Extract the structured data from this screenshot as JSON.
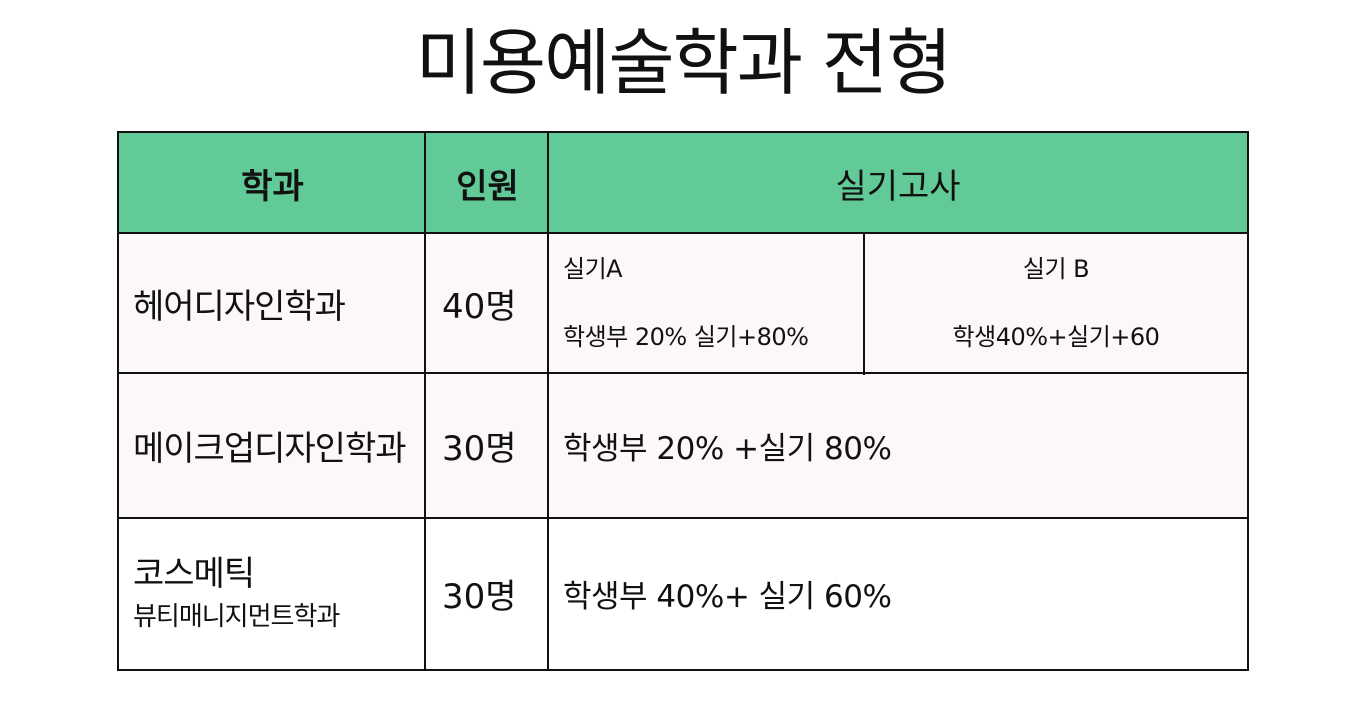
{
  "title": "미용예술학과 전형",
  "headers": {
    "dept": "학과",
    "count": "인원",
    "exam": "실기고사"
  },
  "rows": [
    {
      "dept": "헤어디자인학과",
      "count": "40명",
      "exam_a": {
        "label": "실기A",
        "ratio": "학생부 20% 실기+80%"
      },
      "exam_b": {
        "label": "실기 B",
        "ratio": "학생40%+실기+60"
      }
    },
    {
      "dept": "메이크업디자인학과",
      "count": "30명",
      "exam": "학생부 20% +실기 80%"
    },
    {
      "dept_line1": "코스메틱",
      "dept_line2": "뷰티매니지먼트학과",
      "count": "30명",
      "exam": "학생부 40%+ 실기 60%"
    }
  ],
  "colors": {
    "header_bg": "#62ca97",
    "row_bg": "#fcf8f7",
    "border": "#111111"
  }
}
